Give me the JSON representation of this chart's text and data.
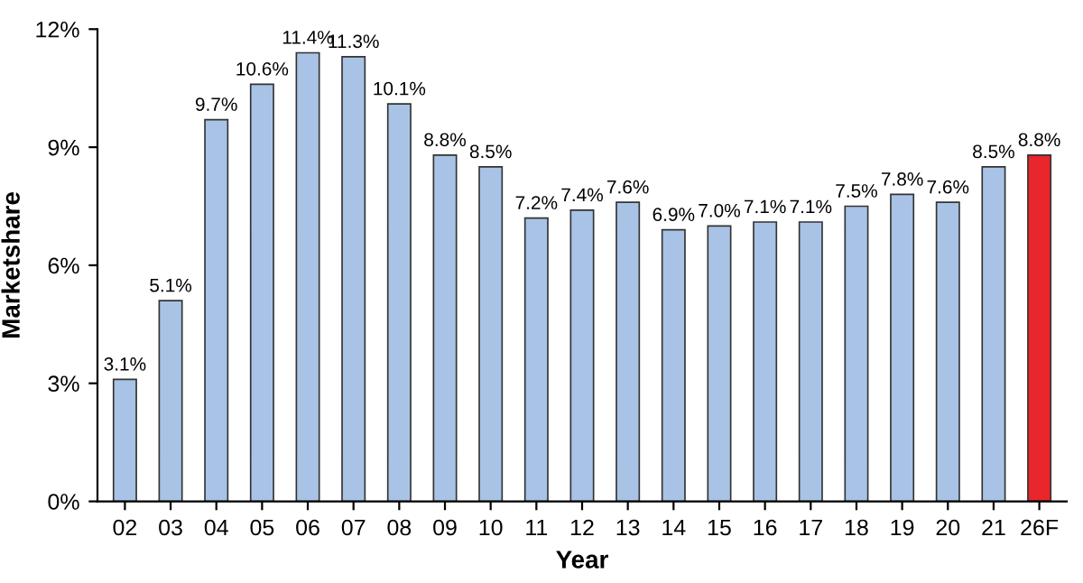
{
  "chart_data": {
    "type": "bar",
    "xlabel": "Year",
    "ylabel": "Marketshare",
    "categories": [
      "02",
      "03",
      "04",
      "05",
      "06",
      "07",
      "08",
      "09",
      "10",
      "11",
      "12",
      "13",
      "14",
      "15",
      "16",
      "17",
      "18",
      "19",
      "20",
      "21",
      "26F"
    ],
    "values": [
      3.1,
      5.1,
      9.7,
      10.6,
      11.4,
      11.3,
      10.1,
      8.8,
      8.5,
      7.2,
      7.4,
      7.6,
      6.9,
      7.0,
      7.1,
      7.1,
      7.5,
      7.8,
      7.6,
      8.5,
      8.8
    ],
    "value_labels": [
      "3.1%",
      "5.1%",
      "9.7%",
      "10.6%",
      "11.4%",
      "11.3%",
      "10.1%",
      "8.8%",
      "8.5%",
      "7.2%",
      "7.4%",
      "7.6%",
      "6.9%",
      "7.0%",
      "7.1%",
      "7.1%",
      "7.5%",
      "7.8%",
      "7.6%",
      "8.5%",
      "8.8%"
    ],
    "colors": [
      "#a8c3e5",
      "#a8c3e5",
      "#a8c3e5",
      "#a8c3e5",
      "#a8c3e5",
      "#a8c3e5",
      "#a8c3e5",
      "#a8c3e5",
      "#a8c3e5",
      "#a8c3e5",
      "#a8c3e5",
      "#a8c3e5",
      "#a8c3e5",
      "#a8c3e5",
      "#a8c3e5",
      "#a8c3e5",
      "#a8c3e5",
      "#a8c3e5",
      "#a8c3e5",
      "#a8c3e5",
      "#e8262b"
    ],
    "ylim": [
      0,
      12
    ],
    "yticks": [
      {
        "value": 0,
        "label": "0%"
      },
      {
        "value": 3,
        "label": "3%"
      },
      {
        "value": 6,
        "label": "6%"
      },
      {
        "value": 9,
        "label": "9%"
      },
      {
        "value": 12,
        "label": "12%"
      }
    ],
    "grid": false,
    "legend": false
  }
}
